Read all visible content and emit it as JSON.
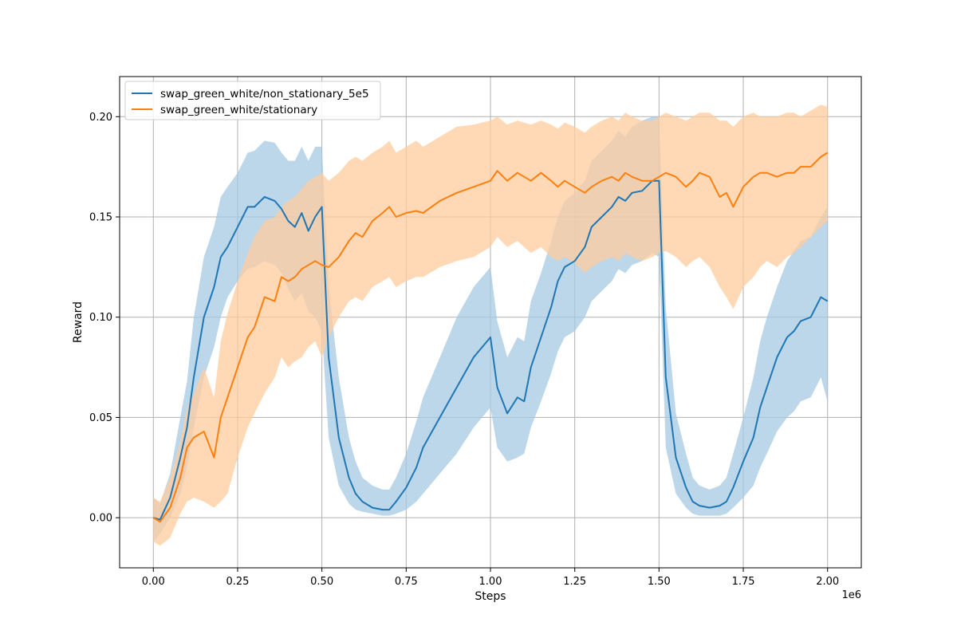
{
  "chart_data": {
    "type": "line",
    "title": "",
    "xlabel": "Steps",
    "ylabel": "Reward",
    "x_offset_label": "1e6",
    "xlim": [
      -0.1,
      2.1
    ],
    "ylim": [
      -0.025,
      0.22
    ],
    "grid": true,
    "legend_position": "top-left",
    "x_ticks": [
      0.0,
      0.25,
      0.5,
      0.75,
      1.0,
      1.25,
      1.5,
      1.75,
      2.0
    ],
    "x_tick_labels": [
      "0.00",
      "0.25",
      "0.50",
      "0.75",
      "1.00",
      "1.25",
      "1.50",
      "1.75",
      "2.00"
    ],
    "y_ticks": [
      0.0,
      0.05,
      0.1,
      0.15,
      0.2
    ],
    "y_tick_labels": [
      "0.00",
      "0.05",
      "0.10",
      "0.15",
      "0.20"
    ],
    "x": [
      0.0,
      0.02,
      0.05,
      0.08,
      0.1,
      0.12,
      0.15,
      0.18,
      0.2,
      0.22,
      0.25,
      0.28,
      0.3,
      0.33,
      0.36,
      0.38,
      0.4,
      0.42,
      0.44,
      0.46,
      0.48,
      0.5,
      0.52,
      0.55,
      0.58,
      0.6,
      0.62,
      0.65,
      0.68,
      0.7,
      0.72,
      0.75,
      0.78,
      0.8,
      0.85,
      0.9,
      0.95,
      1.0,
      1.02,
      1.05,
      1.08,
      1.1,
      1.12,
      1.15,
      1.18,
      1.2,
      1.22,
      1.25,
      1.28,
      1.3,
      1.33,
      1.36,
      1.38,
      1.4,
      1.42,
      1.45,
      1.48,
      1.5,
      1.52,
      1.55,
      1.58,
      1.6,
      1.62,
      1.65,
      1.68,
      1.7,
      1.72,
      1.75,
      1.78,
      1.8,
      1.82,
      1.85,
      1.88,
      1.9,
      1.92,
      1.95,
      1.98,
      2.0
    ],
    "series": [
      {
        "name": "swap_green_white/non_stationary_5e5",
        "color": "#1f77b4",
        "band_color": "#a6c8e3",
        "values": [
          0.0,
          -0.001,
          0.01,
          0.03,
          0.045,
          0.07,
          0.1,
          0.115,
          0.13,
          0.135,
          0.145,
          0.155,
          0.155,
          0.16,
          0.158,
          0.154,
          0.148,
          0.145,
          0.152,
          0.143,
          0.15,
          0.155,
          0.08,
          0.04,
          0.02,
          0.012,
          0.008,
          0.005,
          0.004,
          0.004,
          0.008,
          0.015,
          0.025,
          0.035,
          0.05,
          0.065,
          0.08,
          0.09,
          0.065,
          0.052,
          0.06,
          0.058,
          0.075,
          0.09,
          0.105,
          0.118,
          0.125,
          0.128,
          0.135,
          0.145,
          0.15,
          0.155,
          0.16,
          0.158,
          0.162,
          0.163,
          0.168,
          0.168,
          0.07,
          0.03,
          0.015,
          0.008,
          0.006,
          0.005,
          0.006,
          0.008,
          0.015,
          0.028,
          0.04,
          0.055,
          0.065,
          0.08,
          0.09,
          0.093,
          0.098,
          0.1,
          0.11,
          0.108
        ],
        "lower": [
          -0.012,
          -0.008,
          0.0,
          0.012,
          0.025,
          0.045,
          0.07,
          0.085,
          0.1,
          0.11,
          0.118,
          0.124,
          0.125,
          0.128,
          0.126,
          0.122,
          0.114,
          0.108,
          0.112,
          0.103,
          0.1,
          0.093,
          0.04,
          0.016,
          0.007,
          0.004,
          0.003,
          0.002,
          0.001,
          0.001,
          0.002,
          0.004,
          0.008,
          0.012,
          0.022,
          0.032,
          0.045,
          0.055,
          0.035,
          0.028,
          0.03,
          0.032,
          0.045,
          0.058,
          0.072,
          0.083,
          0.09,
          0.093,
          0.1,
          0.108,
          0.113,
          0.118,
          0.124,
          0.122,
          0.126,
          0.128,
          0.132,
          0.13,
          0.035,
          0.012,
          0.005,
          0.002,
          0.001,
          0.001,
          0.001,
          0.002,
          0.005,
          0.01,
          0.016,
          0.025,
          0.032,
          0.043,
          0.05,
          0.053,
          0.058,
          0.06,
          0.07,
          0.058
        ],
        "upper": [
          0.01,
          0.007,
          0.022,
          0.05,
          0.068,
          0.1,
          0.13,
          0.145,
          0.16,
          0.165,
          0.172,
          0.182,
          0.183,
          0.188,
          0.187,
          0.182,
          0.178,
          0.178,
          0.185,
          0.178,
          0.185,
          0.185,
          0.115,
          0.07,
          0.04,
          0.028,
          0.02,
          0.016,
          0.014,
          0.014,
          0.02,
          0.032,
          0.048,
          0.06,
          0.08,
          0.1,
          0.115,
          0.125,
          0.098,
          0.08,
          0.09,
          0.088,
          0.108,
          0.122,
          0.138,
          0.15,
          0.158,
          0.162,
          0.168,
          0.178,
          0.183,
          0.188,
          0.193,
          0.19,
          0.195,
          0.198,
          0.2,
          0.2,
          0.105,
          0.052,
          0.032,
          0.02,
          0.016,
          0.014,
          0.016,
          0.02,
          0.032,
          0.05,
          0.07,
          0.088,
          0.1,
          0.115,
          0.128,
          0.133,
          0.138,
          0.14,
          0.15,
          0.155
        ]
      },
      {
        "name": "swap_green_white/stationary",
        "color": "#ff7f0e",
        "band_color": "#ffcc9e",
        "values": [
          0.0,
          -0.002,
          0.005,
          0.02,
          0.035,
          0.04,
          0.043,
          0.03,
          0.05,
          0.06,
          0.075,
          0.09,
          0.095,
          0.11,
          0.108,
          0.12,
          0.118,
          0.12,
          0.124,
          0.126,
          0.128,
          0.126,
          0.125,
          0.13,
          0.138,
          0.142,
          0.14,
          0.148,
          0.152,
          0.155,
          0.15,
          0.152,
          0.153,
          0.152,
          0.158,
          0.162,
          0.165,
          0.168,
          0.173,
          0.168,
          0.172,
          0.17,
          0.168,
          0.172,
          0.168,
          0.165,
          0.168,
          0.165,
          0.162,
          0.165,
          0.168,
          0.17,
          0.168,
          0.172,
          0.17,
          0.168,
          0.168,
          0.17,
          0.172,
          0.17,
          0.165,
          0.168,
          0.172,
          0.17,
          0.16,
          0.162,
          0.155,
          0.165,
          0.17,
          0.172,
          0.172,
          0.17,
          0.172,
          0.172,
          0.175,
          0.175,
          0.18,
          0.182
        ],
        "lower": [
          -0.012,
          -0.014,
          -0.01,
          0.002,
          0.008,
          0.01,
          0.008,
          0.005,
          0.008,
          0.012,
          0.03,
          0.045,
          0.052,
          0.062,
          0.07,
          0.08,
          0.075,
          0.078,
          0.08,
          0.085,
          0.088,
          0.08,
          0.09,
          0.1,
          0.108,
          0.11,
          0.108,
          0.115,
          0.118,
          0.12,
          0.115,
          0.118,
          0.12,
          0.12,
          0.125,
          0.128,
          0.13,
          0.135,
          0.14,
          0.135,
          0.138,
          0.135,
          0.132,
          0.135,
          0.13,
          0.128,
          0.13,
          0.127,
          0.122,
          0.125,
          0.128,
          0.13,
          0.128,
          0.132,
          0.13,
          0.128,
          0.13,
          0.132,
          0.133,
          0.13,
          0.125,
          0.128,
          0.13,
          0.125,
          0.115,
          0.11,
          0.104,
          0.115,
          0.12,
          0.125,
          0.128,
          0.125,
          0.13,
          0.132,
          0.135,
          0.14,
          0.145,
          0.148
        ],
        "upper": [
          0.01,
          0.008,
          0.02,
          0.038,
          0.055,
          0.062,
          0.075,
          0.06,
          0.088,
          0.102,
          0.118,
          0.132,
          0.14,
          0.148,
          0.15,
          0.155,
          0.158,
          0.16,
          0.164,
          0.168,
          0.17,
          0.172,
          0.168,
          0.172,
          0.178,
          0.18,
          0.178,
          0.182,
          0.185,
          0.188,
          0.182,
          0.185,
          0.188,
          0.185,
          0.19,
          0.195,
          0.196,
          0.198,
          0.2,
          0.196,
          0.198,
          0.197,
          0.196,
          0.198,
          0.196,
          0.194,
          0.197,
          0.195,
          0.192,
          0.195,
          0.198,
          0.2,
          0.198,
          0.202,
          0.2,
          0.198,
          0.198,
          0.2,
          0.202,
          0.2,
          0.198,
          0.2,
          0.202,
          0.202,
          0.198,
          0.198,
          0.195,
          0.2,
          0.202,
          0.2,
          0.2,
          0.2,
          0.202,
          0.202,
          0.2,
          0.203,
          0.206,
          0.205
        ]
      }
    ]
  }
}
